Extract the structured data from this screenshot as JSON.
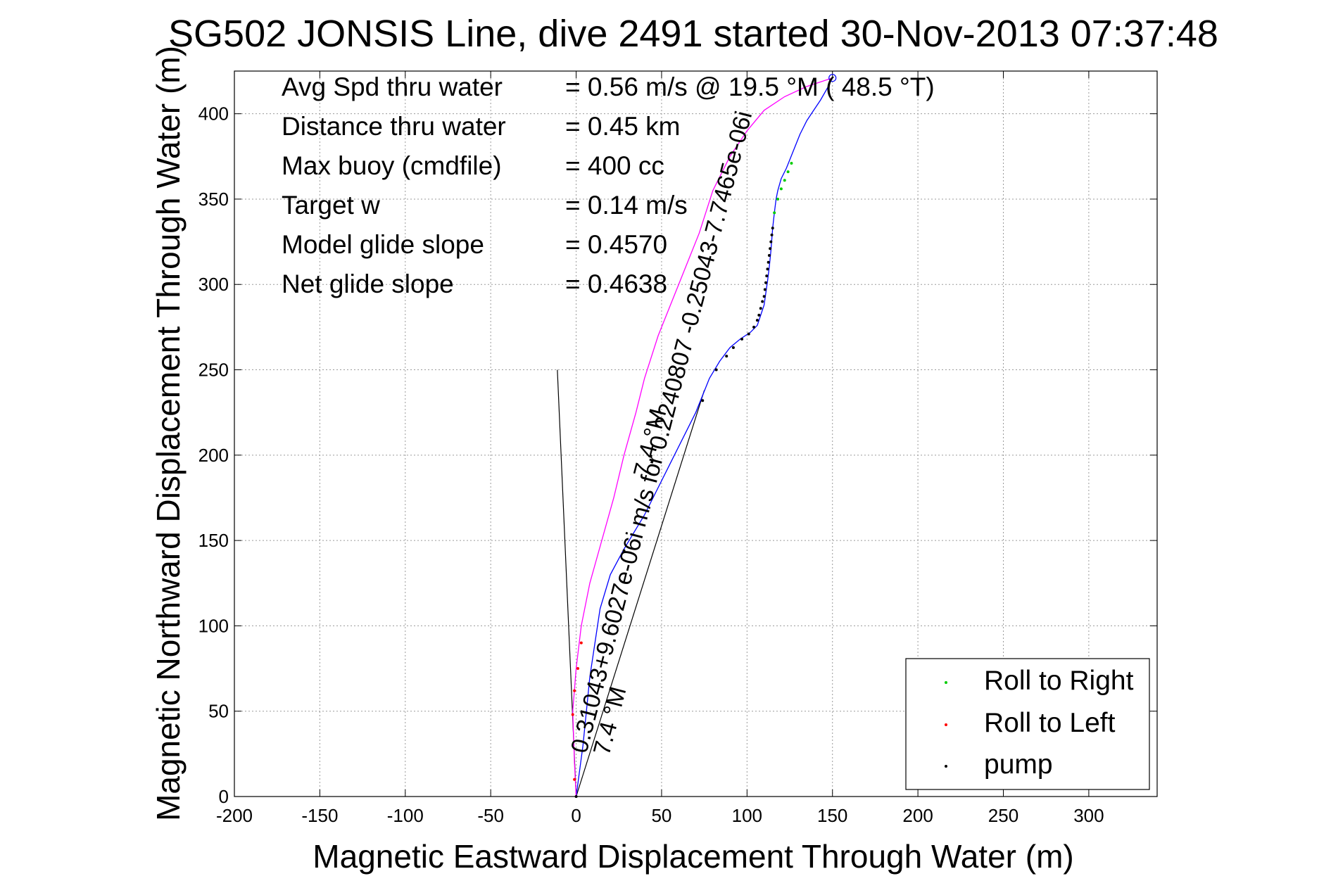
{
  "chart_data": {
    "type": "line",
    "title": "SG502 JONSIS Line, dive 2491  started 30-Nov-2013 07:37:48",
    "xlabel": "Magnetic Eastward Displacement Through Water (m)",
    "ylabel": "Magnetic Northward Displacement Through Water (m)",
    "xlim": [
      -200,
      340
    ],
    "ylim": [
      0,
      425
    ],
    "xticks": [
      -200,
      -150,
      -100,
      -50,
      0,
      50,
      100,
      150,
      200,
      250,
      300
    ],
    "yticks": [
      0,
      50,
      100,
      150,
      200,
      250,
      300,
      350,
      400
    ],
    "grid": true,
    "legend_position": "bottom-right",
    "legend": [
      {
        "label": "Roll to Right",
        "color": "#00cc00"
      },
      {
        "label": "Roll to Left",
        "color": "#ff0000"
      },
      {
        "label": "pump",
        "color": "#000000"
      }
    ],
    "stats": [
      {
        "label": "Avg Spd thru water",
        "value": "=  0.56 m/s @   19.5 °M ( 48.5 °T)"
      },
      {
        "label": "Distance thru water",
        "value": "=  0.45 km"
      },
      {
        "label": "Max buoy (cmdfile)",
        "value": "= 400 cc"
      },
      {
        "label": "Target w",
        "value": "= 0.14 m/s"
      },
      {
        "label": "Model glide slope",
        "value": "= 0.4570"
      },
      {
        "label": "Net glide slope",
        "value": "= 0.4638"
      }
    ],
    "annotations": [
      {
        "text": "0.31043+9.6027e-06i m/s for 0.2240807 -0.25043-7.7465e-06i",
        "color": "#000000"
      },
      {
        "text": "7.4 °M",
        "color": "#000000"
      },
      {
        "text": "7.4 °M",
        "color": "#000000"
      }
    ],
    "series": [
      {
        "color": "#0000ff",
        "x": [
          0,
          4,
          8,
          14,
          20,
          28,
          40,
          55,
          70,
          78,
          84,
          90,
          96,
          102,
          106,
          108,
          110,
          111,
          112,
          113,
          114,
          115,
          116,
          117,
          118,
          120,
          123,
          127,
          131,
          135,
          139,
          143,
          147,
          150
        ],
        "y": [
          0,
          30,
          70,
          110,
          130,
          145,
          165,
          195,
          225,
          245,
          255,
          263,
          268,
          272,
          276,
          282,
          288,
          295,
          302,
          310,
          320,
          333,
          342,
          350,
          355,
          362,
          368,
          378,
          388,
          396,
          402,
          408,
          415,
          421
        ]
      },
      {
        "color": "#ff00ff",
        "x": [
          0,
          -1,
          -2,
          0,
          3,
          8,
          15,
          22,
          28,
          35,
          40,
          48,
          60,
          72,
          80,
          90,
          100,
          110,
          122,
          135,
          150
        ],
        "y": [
          0,
          20,
          50,
          75,
          100,
          125,
          150,
          175,
          200,
          225,
          245,
          270,
          300,
          330,
          355,
          375,
          390,
          402,
          410,
          416,
          421
        ]
      }
    ],
    "reference_lines": [
      {
        "x": [
          0,
          -11
        ],
        "y": [
          0,
          250
        ],
        "color": "#000000"
      },
      {
        "x": [
          0,
          75
        ],
        "y": [
          0,
          238
        ],
        "color": "#000000"
      }
    ],
    "markers": [
      {
        "name": "Roll to Right",
        "color": "#00cc00",
        "x": [
          116,
          118,
          120,
          122,
          124,
          126
        ],
        "y": [
          342,
          350,
          356,
          361,
          366,
          371
        ]
      },
      {
        "name": "Roll to Left",
        "color": "#ff0000",
        "x": [
          -1,
          -2,
          -1,
          1,
          3
        ],
        "y": [
          10,
          48,
          62,
          75,
          90
        ]
      },
      {
        "name": "pump",
        "color": "#000000",
        "x": [
          0,
          28,
          74,
          82,
          88,
          92,
          97,
          101,
          104,
          106,
          107,
          108,
          109,
          110,
          110.5,
          111,
          111.5,
          112,
          112.5,
          113,
          113.5,
          114,
          114.5,
          115
        ],
        "y": [
          0,
          144,
          232,
          250,
          258,
          263,
          268,
          271,
          275,
          279,
          282,
          286,
          290,
          293,
          297,
          301,
          305,
          309,
          313,
          317,
          321,
          325,
          329,
          333
        ]
      },
      {
        "name": "end",
        "color": "#0000ff",
        "hollow": true,
        "x": [
          150
        ],
        "y": [
          421
        ]
      }
    ]
  }
}
